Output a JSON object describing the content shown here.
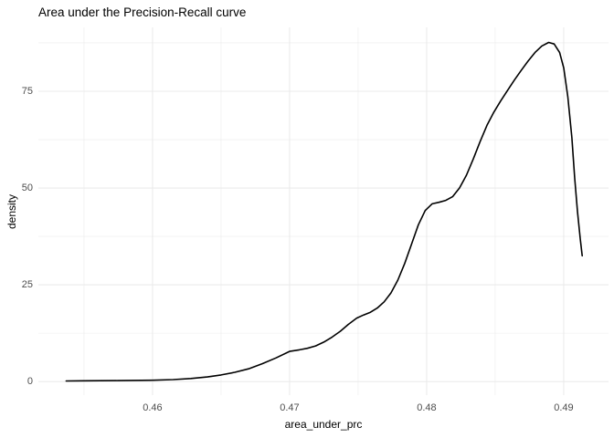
{
  "title": "Area under the Precision-Recall curve",
  "chart_data": {
    "type": "line",
    "title": "Area under the Precision-Recall curve",
    "xlabel": "area_under_prc",
    "ylabel": "density",
    "grid": true,
    "legend": "none",
    "background_color": "#ffffff",
    "grid_color": "#ebebeb",
    "line_color": "#000000",
    "tick_label_color": "#4d4d4d",
    "x_domain": [
      0.45167,
      0.49327
    ],
    "y_domain": [
      -3.5,
      91.5
    ],
    "x_major_ticks": [
      0.46,
      0.47,
      0.48,
      0.49
    ],
    "x_major_labels": [
      "0.46",
      "0.47",
      "0.48",
      "0.49"
    ],
    "x_minor_ticks": [
      0.455,
      0.465,
      0.475,
      0.485
    ],
    "y_major_ticks": [
      0,
      25,
      50,
      75
    ],
    "y_major_labels": [
      "0",
      "25",
      "50",
      "75"
    ],
    "y_minor_ticks": [
      12.5,
      37.5,
      62.5,
      87.5
    ],
    "series": [
      {
        "name": "density",
        "points": [
          [
            0.4537,
            0.15
          ],
          [
            0.455,
            0.2
          ],
          [
            0.4575,
            0.25
          ],
          [
            0.46,
            0.35
          ],
          [
            0.4615,
            0.5
          ],
          [
            0.4628,
            0.8
          ],
          [
            0.464,
            1.2
          ],
          [
            0.465,
            1.7
          ],
          [
            0.466,
            2.4
          ],
          [
            0.467,
            3.3
          ],
          [
            0.468,
            4.6
          ],
          [
            0.469,
            6.1
          ],
          [
            0.47,
            7.8
          ],
          [
            0.4707,
            8.2
          ],
          [
            0.4713,
            8.6
          ],
          [
            0.4719,
            9.2
          ],
          [
            0.4725,
            10.2
          ],
          [
            0.4731,
            11.5
          ],
          [
            0.4737,
            13.0
          ],
          [
            0.4743,
            14.8
          ],
          [
            0.4749,
            16.4
          ],
          [
            0.4754,
            17.2
          ],
          [
            0.4759,
            17.9
          ],
          [
            0.4764,
            19.0
          ],
          [
            0.4769,
            20.6
          ],
          [
            0.4774,
            22.9
          ],
          [
            0.4779,
            26.2
          ],
          [
            0.4784,
            30.5
          ],
          [
            0.4789,
            35.5
          ],
          [
            0.4794,
            40.5
          ],
          [
            0.4799,
            44.2
          ],
          [
            0.4804,
            45.9
          ],
          [
            0.4809,
            46.3
          ],
          [
            0.4814,
            46.8
          ],
          [
            0.4819,
            47.8
          ],
          [
            0.4824,
            50.0
          ],
          [
            0.4829,
            53.3
          ],
          [
            0.4834,
            57.5
          ],
          [
            0.4839,
            62.0
          ],
          [
            0.4844,
            66.2
          ],
          [
            0.4849,
            69.6
          ],
          [
            0.4854,
            72.5
          ],
          [
            0.4859,
            75.2
          ],
          [
            0.4864,
            77.9
          ],
          [
            0.4869,
            80.4
          ],
          [
            0.4874,
            82.8
          ],
          [
            0.4879,
            85.0
          ],
          [
            0.4884,
            86.7
          ],
          [
            0.4889,
            87.6
          ],
          [
            0.4893,
            87.2
          ],
          [
            0.4897,
            85.0
          ],
          [
            0.49,
            81.0
          ],
          [
            0.4903,
            73.5
          ],
          [
            0.4906,
            63.0
          ],
          [
            0.4908,
            52.5
          ],
          [
            0.491,
            44.0
          ],
          [
            0.4912,
            37.0
          ],
          [
            0.49135,
            32.5
          ]
        ]
      }
    ]
  }
}
